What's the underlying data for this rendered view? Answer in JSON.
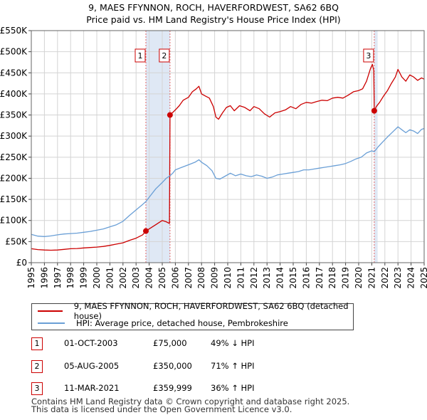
{
  "title_line1": "9, MAES FFYNNON, ROCH, HAVERFORDWEST, SA62 6BQ",
  "title_line2": "Price paid vs. HM Land Registry's House Price Index (HPI)",
  "chart_data": {
    "type": "line",
    "xlim": [
      1995.0,
      2025.0
    ],
    "ylim": [
      0,
      550000
    ],
    "y_ticks": [
      0,
      50000,
      100000,
      150000,
      200000,
      250000,
      300000,
      350000,
      400000,
      450000,
      500000,
      550000
    ],
    "y_tick_labels": [
      "£0",
      "£50K",
      "£100K",
      "£150K",
      "£200K",
      "£250K",
      "£300K",
      "£350K",
      "£400K",
      "£450K",
      "£500K",
      "£550K"
    ],
    "x_tick_labels": [
      "1995",
      "1996",
      "1997",
      "1998",
      "1999",
      "2000",
      "2001",
      "2002",
      "2003",
      "2004",
      "2005",
      "2006",
      "2007",
      "2008",
      "2009",
      "2010",
      "2011",
      "2012",
      "2013",
      "2014",
      "2015",
      "2016",
      "2017",
      "2018",
      "2019",
      "2020",
      "2021",
      "2022",
      "2023",
      "2024",
      "2025"
    ],
    "grid": true,
    "shaded_periods": [
      [
        2003.75,
        2005.59
      ],
      [
        2021.19,
        2021.45
      ]
    ],
    "series": [
      {
        "name": "9, MAES FFYNNON, ROCH, HAVERFORDWEST, SA62 6BQ (detached house)",
        "color": "#cc0000",
        "points": [
          [
            1995.0,
            33000
          ],
          [
            1995.5,
            31000
          ],
          [
            1996.0,
            30000
          ],
          [
            1996.5,
            29500
          ],
          [
            1997.0,
            30000
          ],
          [
            1997.5,
            31500
          ],
          [
            1998.0,
            33000
          ],
          [
            1998.5,
            33500
          ],
          [
            1999.0,
            35000
          ],
          [
            1999.5,
            36000
          ],
          [
            2000.0,
            37000
          ],
          [
            2000.5,
            38500
          ],
          [
            2001.0,
            41000
          ],
          [
            2001.5,
            44000
          ],
          [
            2002.0,
            47000
          ],
          [
            2002.5,
            53000
          ],
          [
            2003.0,
            58000
          ],
          [
            2003.5,
            66000
          ],
          [
            2003.75,
            75000
          ],
          [
            2004.0,
            80000
          ],
          [
            2004.5,
            90000
          ],
          [
            2005.0,
            100000
          ],
          [
            2005.3,
            97000
          ],
          [
            2005.55,
            93000
          ],
          [
            2005.59,
            350000
          ],
          [
            2005.8,
            356000
          ],
          [
            2006.0,
            362000
          ],
          [
            2006.3,
            372000
          ],
          [
            2006.6,
            385000
          ],
          [
            2007.0,
            392000
          ],
          [
            2007.3,
            405000
          ],
          [
            2007.6,
            412000
          ],
          [
            2007.8,
            418000
          ],
          [
            2008.0,
            400000
          ],
          [
            2008.3,
            395000
          ],
          [
            2008.6,
            390000
          ],
          [
            2008.9,
            370000
          ],
          [
            2009.1,
            345000
          ],
          [
            2009.3,
            340000
          ],
          [
            2009.6,
            355000
          ],
          [
            2009.9,
            368000
          ],
          [
            2010.2,
            372000
          ],
          [
            2010.5,
            360000
          ],
          [
            2010.9,
            372000
          ],
          [
            2011.3,
            368000
          ],
          [
            2011.7,
            360000
          ],
          [
            2012.0,
            370000
          ],
          [
            2012.4,
            365000
          ],
          [
            2012.8,
            353000
          ],
          [
            2013.2,
            345000
          ],
          [
            2013.6,
            355000
          ],
          [
            2014.0,
            358000
          ],
          [
            2014.4,
            362000
          ],
          [
            2014.8,
            370000
          ],
          [
            2015.2,
            365000
          ],
          [
            2015.6,
            375000
          ],
          [
            2016.0,
            380000
          ],
          [
            2016.4,
            378000
          ],
          [
            2016.8,
            382000
          ],
          [
            2017.2,
            385000
          ],
          [
            2017.6,
            384000
          ],
          [
            2018.0,
            390000
          ],
          [
            2018.4,
            392000
          ],
          [
            2018.8,
            390000
          ],
          [
            2019.2,
            397000
          ],
          [
            2019.6,
            405000
          ],
          [
            2020.0,
            408000
          ],
          [
            2020.3,
            412000
          ],
          [
            2020.6,
            430000
          ],
          [
            2020.9,
            460000
          ],
          [
            2021.05,
            470000
          ],
          [
            2021.15,
            455000
          ],
          [
            2021.19,
            359999
          ],
          [
            2021.35,
            370000
          ],
          [
            2021.6,
            380000
          ],
          [
            2021.9,
            395000
          ],
          [
            2022.2,
            408000
          ],
          [
            2022.5,
            425000
          ],
          [
            2022.8,
            440000
          ],
          [
            2023.0,
            458000
          ],
          [
            2023.3,
            440000
          ],
          [
            2023.6,
            430000
          ],
          [
            2023.9,
            445000
          ],
          [
            2024.2,
            440000
          ],
          [
            2024.5,
            432000
          ],
          [
            2024.8,
            438000
          ],
          [
            2025.0,
            435000
          ]
        ]
      },
      {
        "name": "HPI: Average price, detached house, Pembrokeshire",
        "color": "#6a9fd6",
        "points": [
          [
            1995.0,
            67000
          ],
          [
            1995.5,
            63000
          ],
          [
            1996.0,
            62000
          ],
          [
            1996.5,
            63500
          ],
          [
            1997.0,
            66000
          ],
          [
            1997.5,
            68000
          ],
          [
            1998.0,
            69000
          ],
          [
            1998.5,
            70000
          ],
          [
            1999.0,
            72000
          ],
          [
            1999.5,
            74000
          ],
          [
            2000.0,
            77000
          ],
          [
            2000.5,
            80000
          ],
          [
            2001.0,
            85000
          ],
          [
            2001.5,
            90000
          ],
          [
            2002.0,
            98000
          ],
          [
            2002.5,
            112000
          ],
          [
            2003.0,
            125000
          ],
          [
            2003.5,
            138000
          ],
          [
            2003.75,
            145000
          ],
          [
            2004.0,
            155000
          ],
          [
            2004.5,
            175000
          ],
          [
            2005.0,
            190000
          ],
          [
            2005.3,
            200000
          ],
          [
            2005.59,
            206000
          ],
          [
            2005.8,
            212000
          ],
          [
            2006.0,
            220000
          ],
          [
            2006.5,
            226000
          ],
          [
            2007.0,
            232000
          ],
          [
            2007.5,
            238000
          ],
          [
            2007.8,
            244000
          ],
          [
            2008.0,
            238000
          ],
          [
            2008.4,
            230000
          ],
          [
            2008.8,
            218000
          ],
          [
            2009.1,
            200000
          ],
          [
            2009.4,
            198000
          ],
          [
            2009.8,
            205000
          ],
          [
            2010.2,
            212000
          ],
          [
            2010.6,
            206000
          ],
          [
            2011.0,
            210000
          ],
          [
            2011.4,
            206000
          ],
          [
            2011.8,
            204000
          ],
          [
            2012.2,
            208000
          ],
          [
            2012.6,
            205000
          ],
          [
            2013.0,
            200000
          ],
          [
            2013.4,
            203000
          ],
          [
            2013.8,
            208000
          ],
          [
            2014.2,
            210000
          ],
          [
            2014.6,
            212000
          ],
          [
            2015.0,
            214000
          ],
          [
            2015.4,
            216000
          ],
          [
            2015.8,
            220000
          ],
          [
            2016.2,
            220000
          ],
          [
            2016.6,
            222000
          ],
          [
            2017.0,
            224000
          ],
          [
            2017.4,
            226000
          ],
          [
            2017.8,
            228000
          ],
          [
            2018.2,
            230000
          ],
          [
            2018.6,
            232000
          ],
          [
            2019.0,
            235000
          ],
          [
            2019.4,
            240000
          ],
          [
            2019.8,
            246000
          ],
          [
            2020.2,
            250000
          ],
          [
            2020.6,
            260000
          ],
          [
            2021.0,
            265000
          ],
          [
            2021.19,
            263000
          ],
          [
            2021.5,
            275000
          ],
          [
            2021.8,
            285000
          ],
          [
            2022.2,
            298000
          ],
          [
            2022.6,
            310000
          ],
          [
            2023.0,
            322000
          ],
          [
            2023.3,
            315000
          ],
          [
            2023.6,
            308000
          ],
          [
            2023.9,
            315000
          ],
          [
            2024.2,
            312000
          ],
          [
            2024.5,
            306000
          ],
          [
            2024.8,
            316000
          ],
          [
            2025.0,
            318000
          ]
        ]
      }
    ],
    "sales": [
      {
        "label": "1",
        "x": 2003.75,
        "price": 75000
      },
      {
        "label": "2",
        "x": 2005.59,
        "price": 350000
      },
      {
        "label": "3",
        "x": 2021.19,
        "price": 359999
      }
    ]
  },
  "legend": {
    "property_label": "9, MAES FFYNNON, ROCH, HAVERFORDWEST, SA62 6BQ (detached house)",
    "hpi_label": "HPI: Average price, detached house, Pembrokeshire",
    "property_color": "#cc0000",
    "hpi_color": "#6a9fd6"
  },
  "table": [
    {
      "num": "1",
      "date": "01-OCT-2003",
      "price": "£75,000",
      "hpi": "49% ↓ HPI"
    },
    {
      "num": "2",
      "date": "05-AUG-2005",
      "price": "£350,000",
      "hpi": "71% ↑ HPI"
    },
    {
      "num": "3",
      "date": "11-MAR-2021",
      "price": "£359,999",
      "hpi": "36% ↑ HPI"
    }
  ],
  "footer_line1": "Contains HM Land Registry data © Crown copyright and database right 2025.",
  "footer_line2": "This data is licensed under the Open Government Licence v3.0."
}
